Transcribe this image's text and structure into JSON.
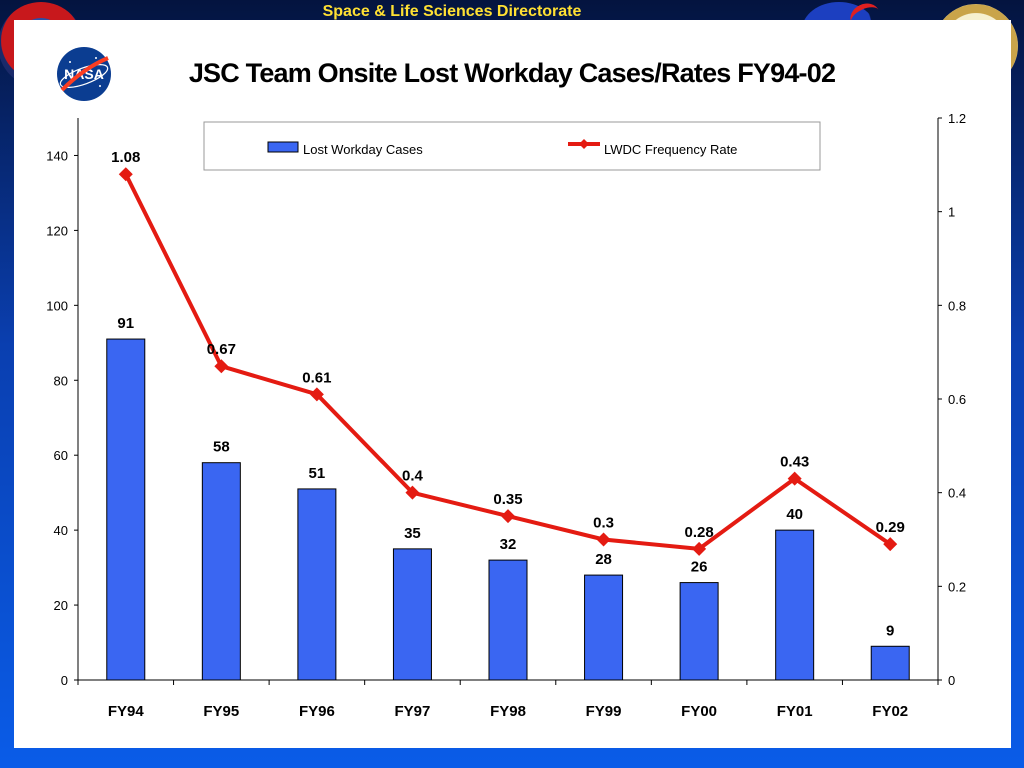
{
  "header": {
    "directorate": "Space & Life Sciences Directorate"
  },
  "colors": {
    "bar": "#3a66f2",
    "line": "#e41b12",
    "text": "#000000"
  },
  "chart_data": {
    "type": "bar",
    "title": "JSC Team Onsite Lost Workday Cases/Rates FY94-02",
    "categories": [
      "FY94",
      "FY95",
      "FY96",
      "FY97",
      "FY98",
      "FY99",
      "FY00",
      "FY01",
      "FY02"
    ],
    "series": [
      {
        "name": "Lost Workday Cases",
        "type": "bar",
        "axis": "left",
        "values": [
          91,
          58,
          51,
          35,
          32,
          28,
          26,
          40,
          9
        ],
        "labels": [
          "91",
          "58",
          "51",
          "35",
          "32",
          "28",
          "26",
          "40",
          "9"
        ]
      },
      {
        "name": "LWDC Frequency Rate",
        "type": "line",
        "axis": "right",
        "values": [
          1.08,
          0.67,
          0.61,
          0.4,
          0.35,
          0.3,
          0.28,
          0.43,
          0.29
        ],
        "labels": [
          "1.08",
          "0.67",
          "0.61",
          "0.4",
          "0.35",
          "0.3",
          "0.28",
          "0.43",
          "0.29"
        ]
      }
    ],
    "y_left": {
      "ylim": [
        0,
        150
      ],
      "ticks": [
        0,
        20,
        40,
        60,
        80,
        100,
        120,
        140
      ],
      "tick_labels": [
        "0",
        "20",
        "40",
        "60",
        "80",
        "100",
        "120",
        "140"
      ]
    },
    "y_right": {
      "ylim": [
        0,
        1.2
      ],
      "ticks": [
        0,
        0.2,
        0.4,
        0.6,
        0.8,
        1,
        1.2
      ],
      "tick_labels": [
        "0",
        "0.2",
        "0.4",
        "0.6",
        "0.8",
        "1",
        "1.2"
      ]
    },
    "grid": false,
    "legend": "top-center"
  }
}
